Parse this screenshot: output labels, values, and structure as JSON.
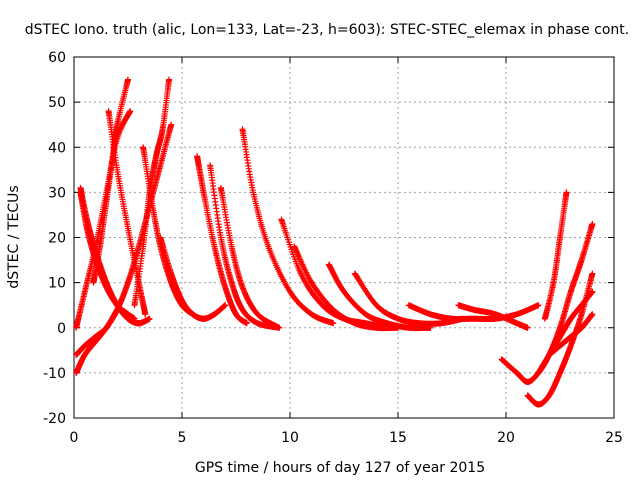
{
  "chart_data": {
    "type": "scatter",
    "title": "dSTEC Iono. truth (alic, Lon=133, Lat=-23, h=603): STEC-STEC_elemax in phase cont.",
    "xlabel": "GPS time / hours of day 127 of year 2015",
    "ylabel": "dSTEC  / TECUs",
    "xlim": [
      0,
      25
    ],
    "ylim": [
      -20,
      60
    ],
    "xticks": [
      0,
      5,
      10,
      15,
      20,
      25
    ],
    "yticks": [
      -20,
      -10,
      0,
      10,
      20,
      30,
      40,
      50,
      60
    ],
    "grid": true,
    "legend": "none",
    "marker": "plus",
    "color": "#ff0000",
    "series": [
      {
        "x": [
          0.1,
          0.5,
          1.0,
          1.5,
          2.0,
          2.6
        ],
        "y": [
          0,
          8,
          18,
          30,
          42,
          48
        ]
      },
      {
        "x": [
          0.1,
          0.5,
          1.0,
          1.5,
          2.0
        ],
        "y": [
          -6,
          -4,
          -2,
          0,
          4
        ]
      },
      {
        "x": [
          0.1,
          0.5,
          1.0,
          1.5,
          2.0,
          2.5,
          3.0,
          3.5,
          4.0,
          4.5
        ],
        "y": [
          -10,
          -6,
          -3,
          0,
          4,
          10,
          18,
          27,
          36,
          45
        ]
      },
      {
        "x": [
          0.3,
          0.6,
          1.0,
          1.5,
          2.0,
          2.5,
          3.0,
          3.5
        ],
        "y": [
          31,
          24,
          17,
          10,
          5,
          2,
          1,
          2
        ]
      },
      {
        "x": [
          0.3,
          0.6,
          1.0,
          1.5,
          2.0,
          2.5,
          2.8
        ],
        "y": [
          30,
          22,
          15,
          9,
          5,
          3,
          2
        ]
      },
      {
        "x": [
          0.9,
          1.2,
          1.5,
          1.8,
          2.0,
          2.5
        ],
        "y": [
          10,
          18,
          28,
          38,
          45,
          55
        ]
      },
      {
        "x": [
          1.6,
          2.0,
          2.5,
          3.0,
          3.3
        ],
        "y": [
          48,
          35,
          22,
          10,
          3
        ]
      },
      {
        "x": [
          2.8,
          3.2,
          3.5,
          3.8,
          4.1,
          4.4
        ],
        "y": [
          5,
          18,
          30,
          38,
          44,
          55
        ]
      },
      {
        "x": [
          3.2,
          3.6,
          4.0,
          4.5,
          5.0,
          5.5
        ],
        "y": [
          40,
          28,
          18,
          10,
          5,
          3
        ]
      },
      {
        "x": [
          4.0,
          4.5,
          5.0,
          5.5,
          6.0,
          6.5,
          7.0
        ],
        "y": [
          20,
          12,
          6,
          3,
          2,
          3,
          5
        ]
      },
      {
        "x": [
          5.7,
          6.0,
          6.5,
          7.0,
          7.5,
          8.0
        ],
        "y": [
          38,
          30,
          18,
          9,
          3,
          1
        ]
      },
      {
        "x": [
          6.3,
          6.8,
          7.3,
          7.8,
          8.5,
          9.5
        ],
        "y": [
          36,
          20,
          10,
          4,
          1,
          0
        ]
      },
      {
        "x": [
          6.8,
          7.3,
          7.8,
          8.5,
          9.5
        ],
        "y": [
          31,
          18,
          9,
          3,
          0
        ]
      },
      {
        "x": [
          7.8,
          8.3,
          9.0,
          10.0,
          11.0,
          12.0
        ],
        "y": [
          44,
          30,
          18,
          8,
          3,
          1
        ]
      },
      {
        "x": [
          9.6,
          10.5,
          11.5,
          12.5,
          13.5,
          14.5
        ],
        "y": [
          24,
          12,
          5,
          2,
          1,
          0
        ]
      },
      {
        "x": [
          10.2,
          11.0,
          12.0,
          13.0,
          14.0,
          15.0
        ],
        "y": [
          18,
          10,
          4,
          1,
          0,
          0
        ]
      },
      {
        "x": [
          11.8,
          12.5,
          13.5,
          14.5,
          15.5,
          16.5
        ],
        "y": [
          14,
          8,
          3,
          1,
          0,
          0
        ]
      },
      {
        "x": [
          13.0,
          14.0,
          15.0,
          16.0,
          17.0,
          18.0
        ],
        "y": [
          12,
          5,
          2,
          1,
          1,
          2
        ]
      },
      {
        "x": [
          15.5,
          16.5,
          17.5,
          18.5,
          19.5,
          20.5,
          21.5
        ],
        "y": [
          5,
          3,
          2,
          2,
          2,
          3,
          5
        ]
      },
      {
        "x": [
          17.8,
          18.5,
          19.5,
          20.5,
          21.0
        ],
        "y": [
          5,
          4,
          3,
          1,
          0
        ]
      },
      {
        "x": [
          19.8,
          20.5,
          21.0,
          21.5,
          22.0,
          22.5,
          23.0,
          23.5,
          24.0
        ],
        "y": [
          -7,
          -10,
          -12,
          -10,
          -6,
          0,
          8,
          15,
          23
        ]
      },
      {
        "x": [
          21.0,
          21.5,
          22.0,
          22.5,
          23.0,
          23.5,
          24.0
        ],
        "y": [
          -15,
          -17,
          -15,
          -10,
          -4,
          3,
          12
        ]
      },
      {
        "x": [
          21.5,
          22.0,
          22.5,
          23.0,
          23.5,
          24.0
        ],
        "y": [
          -10,
          -6,
          -2,
          2,
          5,
          8
        ]
      },
      {
        "x": [
          21.8,
          22.2,
          22.5,
          22.8
        ],
        "y": [
          2,
          10,
          20,
          30
        ]
      },
      {
        "x": [
          22.0,
          22.5,
          23.0,
          23.5,
          24.0
        ],
        "y": [
          -6,
          -4,
          -2,
          0,
          3
        ]
      }
    ]
  }
}
